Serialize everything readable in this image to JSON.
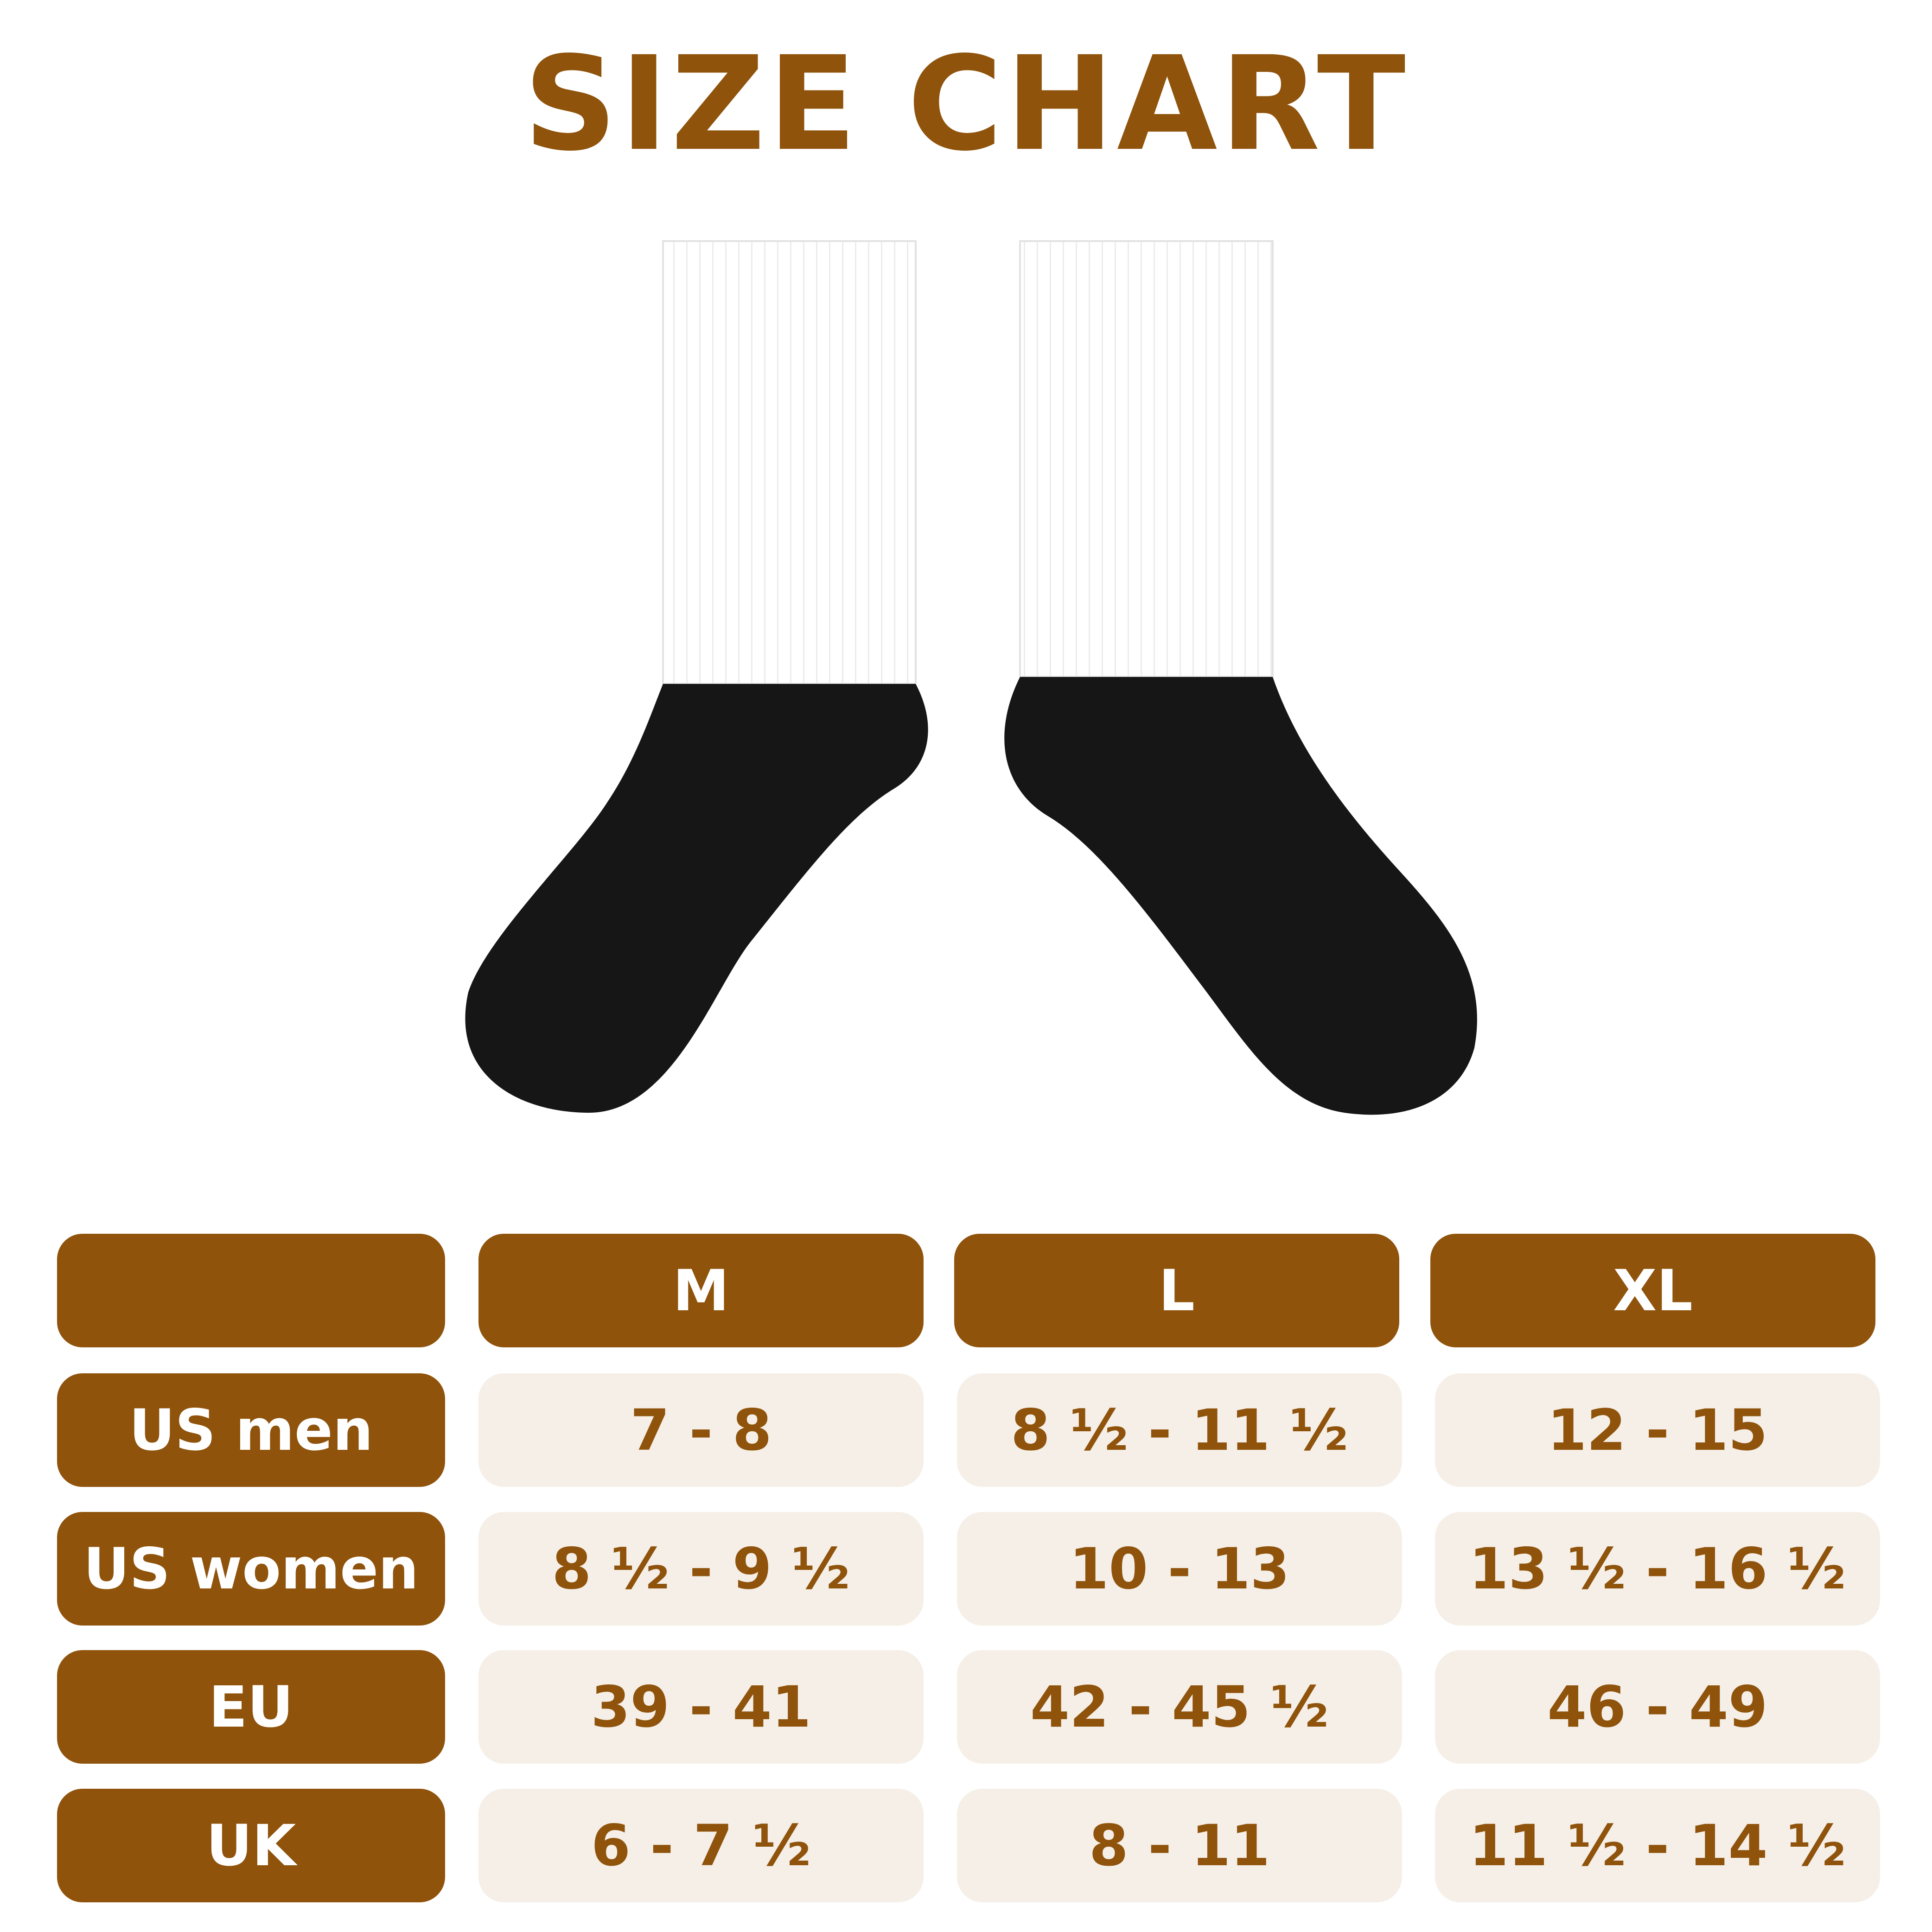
{
  "title": "SIZE CHART",
  "colors": {
    "brand": "#8f530c",
    "cell_background": "#f5efe7"
  },
  "table": {
    "columns": [
      "",
      "M",
      "L",
      "XL"
    ],
    "rows": [
      {
        "label": "US men",
        "values": [
          "7 - 8",
          "8 ½ - 11 ½",
          "12 - 15"
        ]
      },
      {
        "label": "US women",
        "values": [
          "8 ½ - 9 ½",
          "10 - 13",
          "13 ½ - 16 ½"
        ]
      },
      {
        "label": "EU",
        "values": [
          "39 - 41",
          "42 - 45 ½",
          "46 - 49"
        ]
      },
      {
        "label": "UK",
        "values": [
          "6 - 7 ½",
          "8 - 11",
          "11 ½ - 14 ½"
        ]
      }
    ]
  }
}
